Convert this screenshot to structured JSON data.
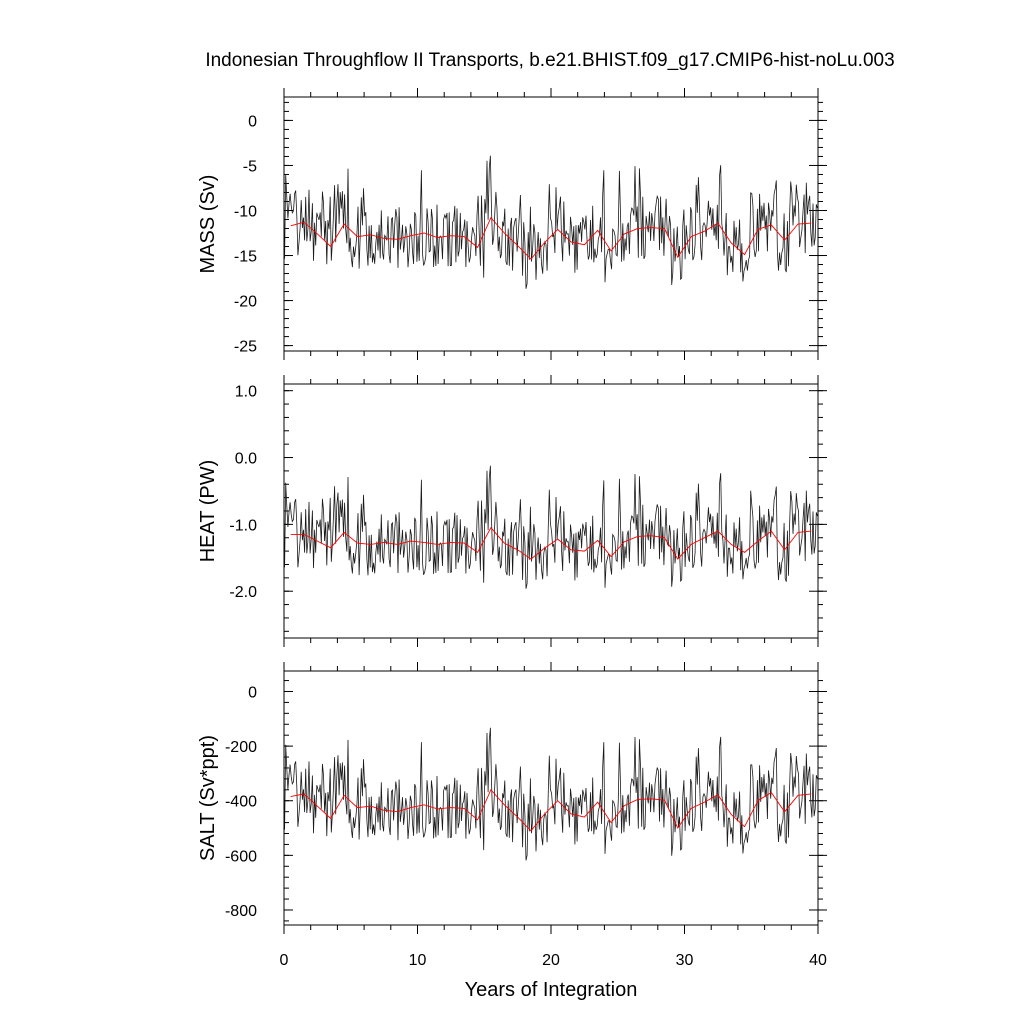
{
  "chart_data": {
    "type": "line",
    "title": "Indonesian Throughflow II Transports, b.e21.BHIST.f09_g17.CMIP6-hist-noLu.003",
    "xlabel": "Years of Integration",
    "xlim": [
      0,
      40
    ],
    "xticks": [
      0,
      10,
      20,
      30,
      40
    ],
    "x_tick_labels": [
      "0",
      "10",
      "20",
      "30",
      "40"
    ],
    "grid": false,
    "legend": "none",
    "colors": {
      "monthly": "#1a1a1a",
      "annual": "#ff0000",
      "frame": "#000000"
    },
    "panels": [
      {
        "id": "mass",
        "ylabel": "MASS (Sv)",
        "ylim": [
          -25.6,
          2.6
        ],
        "yticks": [
          0,
          -5,
          -10,
          -15,
          -20,
          -25
        ],
        "y_tick_labels": [
          "0",
          "-5",
          "-10",
          "-15",
          "-20",
          "-25"
        ],
        "annual_mean": {
          "x": [
            0.5,
            1.5,
            2.5,
            3.5,
            4.5,
            5.5,
            6.5,
            7.5,
            8.5,
            9.5,
            10.5,
            11.5,
            12.5,
            13.5,
            14.5,
            15.5,
            16.5,
            17.5,
            18.5,
            19.5,
            20.5,
            21.5,
            22.5,
            23.5,
            24.5,
            25.5,
            26.5,
            27.5,
            28.5,
            29.5,
            30.5,
            31.5,
            32.5,
            33.5,
            34.5,
            35.5,
            36.5,
            37.5,
            38.5,
            39.5
          ],
          "y": [
            -11.7,
            -11.3,
            -12.6,
            -14.0,
            -11.5,
            -12.9,
            -12.7,
            -13.1,
            -13.2,
            -12.8,
            -12.5,
            -13.0,
            -12.8,
            -12.9,
            -14.1,
            -10.8,
            -12.5,
            -13.9,
            -15.4,
            -13.6,
            -12.1,
            -13.5,
            -13.8,
            -12.2,
            -14.5,
            -12.6,
            -12.0,
            -11.9,
            -12.0,
            -15.2,
            -12.9,
            -12.3,
            -11.4,
            -13.6,
            -14.9,
            -12.1,
            -11.6,
            -13.3,
            -11.5,
            -11.4
          ]
        }
      },
      {
        "id": "heat",
        "ylabel": "HEAT (PW)",
        "ylim": [
          -2.7,
          1.1
        ],
        "yticks": [
          1.0,
          0.0,
          -1.0,
          -2.0
        ],
        "y_tick_labels": [
          "1.0",
          "0.0",
          "-1.0",
          "-2.0"
        ],
        "annual_mean": {
          "x": [
            0.5,
            1.5,
            2.5,
            3.5,
            4.5,
            5.5,
            6.5,
            7.5,
            8.5,
            9.5,
            10.5,
            11.5,
            12.5,
            13.5,
            14.5,
            15.5,
            16.5,
            17.5,
            18.5,
            19.5,
            20.5,
            21.5,
            22.5,
            23.5,
            24.5,
            25.5,
            26.5,
            27.5,
            28.5,
            29.5,
            30.5,
            31.5,
            32.5,
            33.5,
            34.5,
            35.5,
            36.5,
            37.5,
            38.5,
            39.5
          ],
          "y": [
            -1.15,
            -1.15,
            -1.25,
            -1.35,
            -1.12,
            -1.28,
            -1.3,
            -1.27,
            -1.3,
            -1.25,
            -1.27,
            -1.3,
            -1.27,
            -1.28,
            -1.42,
            -1.05,
            -1.28,
            -1.38,
            -1.52,
            -1.36,
            -1.22,
            -1.38,
            -1.4,
            -1.24,
            -1.48,
            -1.26,
            -1.18,
            -1.17,
            -1.2,
            -1.52,
            -1.3,
            -1.2,
            -1.1,
            -1.3,
            -1.42,
            -1.25,
            -1.1,
            -1.38,
            -1.12,
            -1.1
          ]
        }
      },
      {
        "id": "salt",
        "ylabel": "SALT (Sv*ppt)",
        "ylim": [
          -855,
          75
        ],
        "yticks": [
          0,
          -200,
          -400,
          -600,
          -800
        ],
        "y_tick_labels": [
          "0",
          "-200",
          "-400",
          "-600",
          "-800"
        ],
        "annual_mean": {
          "x": [
            0.5,
            1.5,
            2.5,
            3.5,
            4.5,
            5.5,
            6.5,
            7.5,
            8.5,
            9.5,
            10.5,
            11.5,
            12.5,
            13.5,
            14.5,
            15.5,
            16.5,
            17.5,
            18.5,
            19.5,
            20.5,
            21.5,
            22.5,
            23.5,
            24.5,
            25.5,
            26.5,
            27.5,
            28.5,
            29.5,
            30.5,
            31.5,
            32.5,
            33.5,
            34.5,
            35.5,
            36.5,
            37.5,
            38.5,
            39.5
          ],
          "y": [
            -385,
            -375,
            -420,
            -465,
            -380,
            -425,
            -420,
            -435,
            -440,
            -425,
            -415,
            -430,
            -425,
            -428,
            -470,
            -360,
            -415,
            -460,
            -510,
            -450,
            -400,
            -448,
            -460,
            -405,
            -480,
            -418,
            -395,
            -393,
            -398,
            -500,
            -428,
            -405,
            -378,
            -450,
            -495,
            -400,
            -370,
            -440,
            -380,
            -375
          ]
        }
      }
    ]
  }
}
